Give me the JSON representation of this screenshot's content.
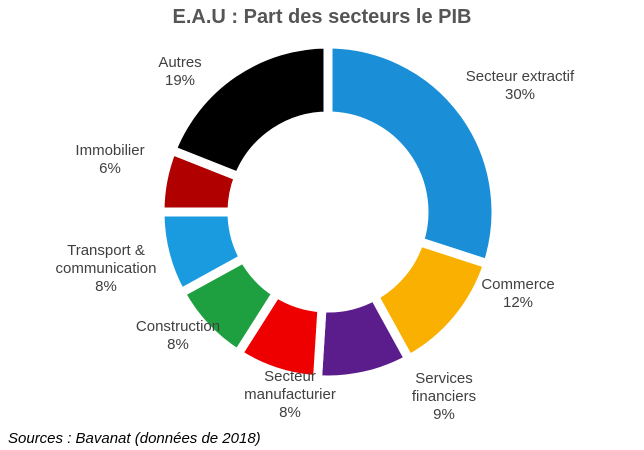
{
  "chart_data": {
    "type": "donut",
    "title": "E.A.U : Part des secteurs le PIB",
    "categories": [
      "Secteur extractif",
      "Commerce",
      "Services financiers",
      "Secteur manufacturier",
      "Construction",
      "Transport & communication",
      "Immobilier",
      "Autres"
    ],
    "values": [
      30,
      12,
      9,
      8,
      8,
      8,
      6,
      19
    ],
    "value_labels": [
      "30%",
      "12%",
      "9%",
      "8%",
      "8%",
      "8%",
      "6%",
      "19%"
    ],
    "colors": [
      "#1a8fd8",
      "#f9b000",
      "#5b1d8c",
      "#ee0000",
      "#1fa040",
      "#1a9be0",
      "#b00000",
      "#000000"
    ],
    "source": "Sources : Bavanat (données de 2018)"
  }
}
